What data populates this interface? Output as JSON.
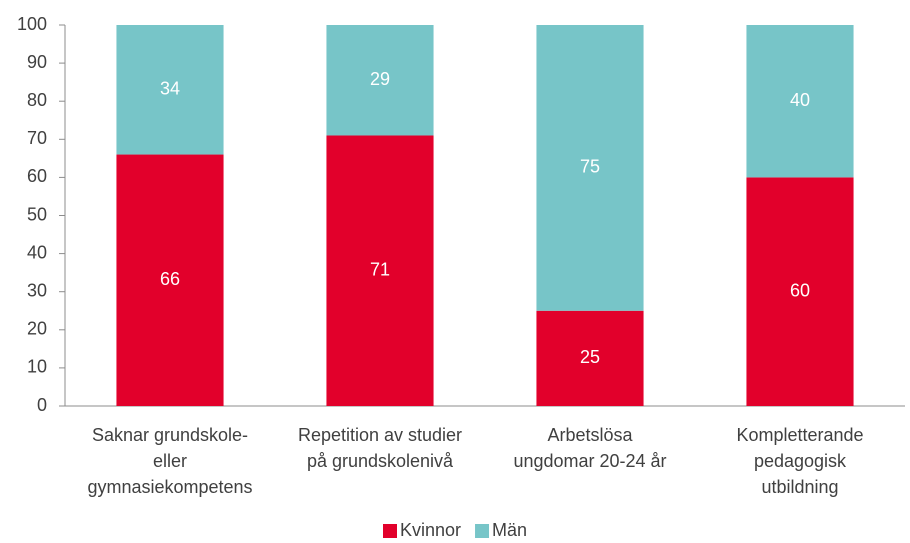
{
  "chart_data": {
    "type": "stacked_bar",
    "categories": [
      [
        "Saknar grundskole-",
        "eller",
        "gymnasiekompetens"
      ],
      [
        "Repetition av studier",
        "på grundskolenivå"
      ],
      [
        "Arbetslösa",
        "ungdomar 20-24 år"
      ],
      [
        "Kompletterande",
        "pedagogisk",
        "utbildning"
      ]
    ],
    "series": [
      {
        "name": "Kvinnor",
        "color": "#e2002b",
        "values": [
          66,
          71,
          25,
          60
        ]
      },
      {
        "name": "Män",
        "color": "#77c5c8",
        "values": [
          34,
          29,
          75,
          40
        ]
      }
    ],
    "ylim": [
      0,
      100
    ],
    "yticks": [
      0,
      10,
      20,
      30,
      40,
      50,
      60,
      70,
      80,
      90,
      100
    ],
    "legend": "bottom"
  }
}
